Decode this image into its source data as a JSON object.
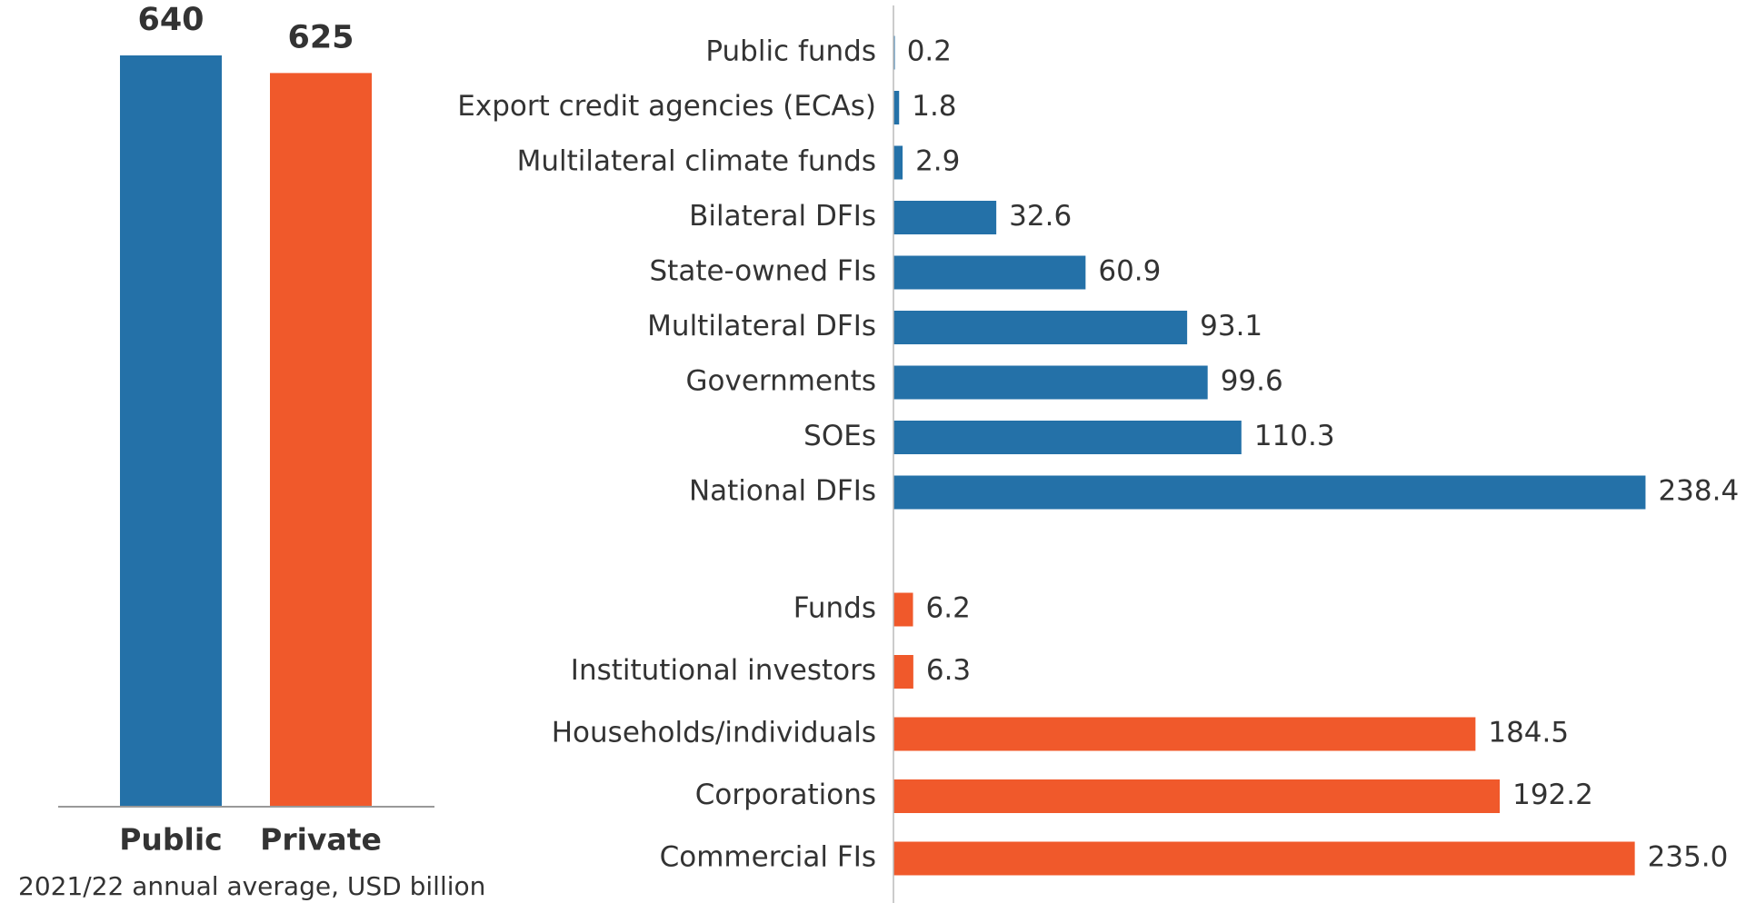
{
  "chart_data": [
    {
      "type": "bar",
      "subtitle": "2021/22 annual average, USD billion",
      "categories": [
        "Public",
        "Private"
      ],
      "values": [
        640,
        625
      ],
      "colors": [
        "#2471a8",
        "#f0592b"
      ],
      "ylim": [
        0,
        640
      ]
    },
    {
      "type": "hbar",
      "categories": [
        "Public funds",
        "Export credit agencies (ECAs)",
        "Multilateral climate funds",
        "Bilateral DFIs",
        "State-owned FIs",
        "Multilateral DFIs",
        "Governments",
        "SOEs",
        "National DFIs"
      ],
      "values": [
        0.2,
        1.8,
        2.9,
        32.6,
        60.9,
        93.1,
        99.6,
        110.3,
        238.4
      ],
      "color": "#2471a8",
      "xlim": [
        0,
        240
      ]
    },
    {
      "type": "hbar",
      "categories": [
        "Funds",
        "Institutional investors",
        "Households/individuals",
        "Corporations",
        "Commercial FIs"
      ],
      "values": [
        6.2,
        6.3,
        184.5,
        192.2,
        235.0
      ],
      "value_labels": [
        "6.2",
        "6.3",
        "184.5",
        "192.2",
        "235.0"
      ],
      "color": "#f0592b",
      "xlim": [
        0,
        240
      ]
    }
  ]
}
